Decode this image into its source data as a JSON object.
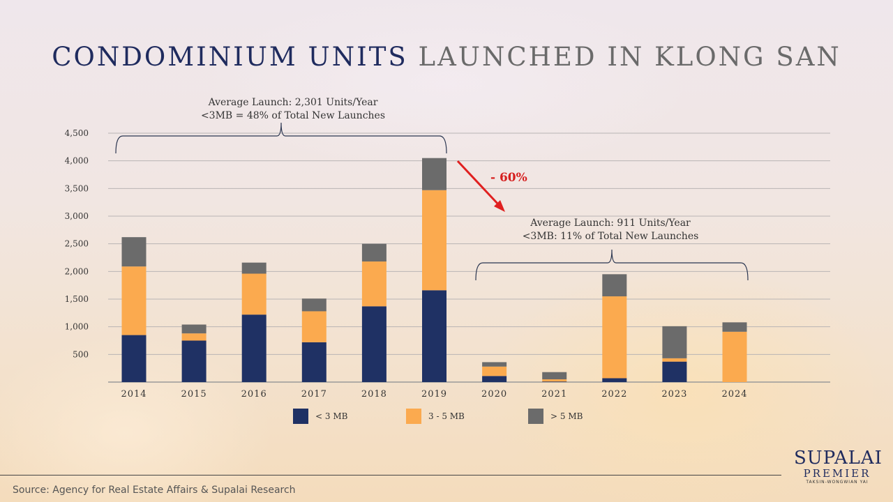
{
  "title": {
    "part1": "CONDOMINIUM UNITS",
    "part2": "LAUNCHED IN KLONG SAN"
  },
  "annotations": {
    "left_line1": "Average Launch: 2,301 Units/Year",
    "left_line2": "<3MB = 48% of Total New Launches",
    "right_line1": "Average Launch: 911 Units/Year",
    "right_line2": "<3MB: 11% of Total New Launches",
    "drop": "- 60%"
  },
  "colors": {
    "lt3": "#1f3164",
    "mid": "#fbaa4f",
    "gt5": "#6b6b6b",
    "arrow": "#e02020"
  },
  "chart_data": {
    "type": "bar",
    "stacked": true,
    "categories": [
      "2014",
      "2015",
      "2016",
      "2017",
      "2018",
      "2019",
      "2020",
      "2021",
      "2022",
      "2023",
      "2024"
    ],
    "series": [
      {
        "name": "< 3 MB",
        "values": [
          850,
          750,
          1220,
          720,
          1370,
          1660,
          110,
          10,
          70,
          370,
          0
        ]
      },
      {
        "name": "3 - 5 MB",
        "values": [
          1240,
          130,
          740,
          560,
          810,
          1810,
          170,
          40,
          1480,
          60,
          910
        ]
      },
      {
        "name": "> 5 MB",
        "values": [
          530,
          160,
          200,
          230,
          320,
          580,
          80,
          130,
          400,
          580,
          170
        ]
      }
    ],
    "yticks": [
      "500",
      "1,000",
      "1,500",
      "2,000",
      "2,500",
      "3,000",
      "3,500",
      "4,000",
      "4,500"
    ],
    "ylim": [
      0,
      4500
    ],
    "grid": true,
    "legend_position": "bottom"
  },
  "source": "Source: Agency for Real Estate Affairs & Supalai Research",
  "logo": {
    "name": "SUPALAI",
    "sub": "PREMIER",
    "tagline": "TAKSIN-WONGWIAN YAI"
  }
}
